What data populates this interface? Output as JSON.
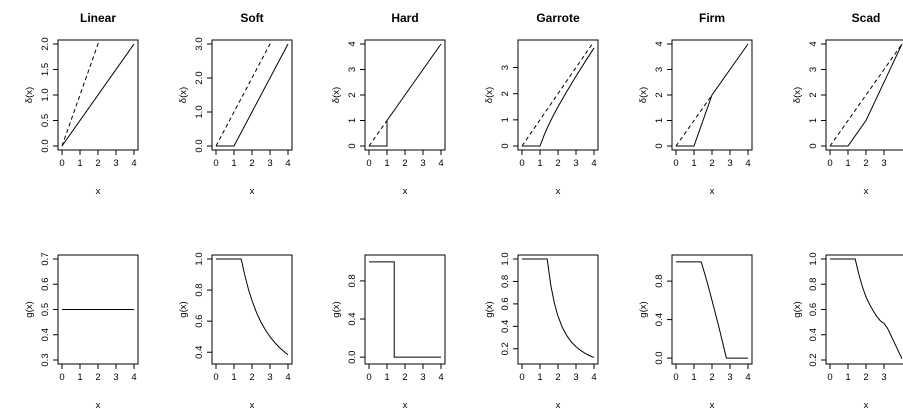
{
  "chart_data": [
    {
      "type": "line",
      "title": "Linear",
      "xlabel": "x",
      "ylabel": "δ(x)",
      "xlim": [
        0,
        4
      ],
      "ylim": [
        0,
        2
      ],
      "xticks": [
        "0",
        "1",
        "2",
        "3",
        "4"
      ],
      "yticks": [
        "0.0",
        "0.5",
        "1.0",
        "1.5",
        "2.0"
      ],
      "series": [
        {
          "style": "solid",
          "x": [
            0,
            4
          ],
          "y": [
            0,
            2
          ]
        },
        {
          "style": "dashed",
          "x": [
            0,
            2.05
          ],
          "y": [
            0,
            2.05
          ]
        }
      ]
    },
    {
      "type": "line",
      "title": "Soft",
      "xlabel": "x",
      "ylabel": "δ(x)",
      "xlim": [
        0,
        4
      ],
      "ylim": [
        0,
        3
      ],
      "xticks": [
        "0",
        "1",
        "2",
        "3",
        "4"
      ],
      "yticks": [
        "0.0",
        "1.0",
        "2.0",
        "3.0"
      ],
      "series": [
        {
          "style": "solid",
          "x": [
            0,
            1,
            4
          ],
          "y": [
            0,
            0,
            3
          ]
        },
        {
          "style": "dashed",
          "x": [
            0,
            3.05
          ],
          "y": [
            0,
            3.05
          ]
        }
      ]
    },
    {
      "type": "line",
      "title": "Hard",
      "xlabel": "x",
      "ylabel": "δ(x)",
      "xlim": [
        0,
        4
      ],
      "ylim": [
        0,
        4
      ],
      "xticks": [
        "0",
        "1",
        "2",
        "3",
        "4"
      ],
      "yticks": [
        "0",
        "1",
        "2",
        "3",
        "4"
      ],
      "series": [
        {
          "style": "solid",
          "x": [
            0,
            1,
            1,
            4
          ],
          "y": [
            0,
            0,
            1,
            4
          ]
        },
        {
          "style": "dashed",
          "x": [
            0,
            1
          ],
          "y": [
            0,
            1
          ]
        }
      ]
    },
    {
      "type": "line",
      "title": "Garrote",
      "xlabel": "x",
      "ylabel": "δ(x)",
      "xlim": [
        0,
        4
      ],
      "ylim": [
        0,
        3.9
      ],
      "xticks": [
        "0",
        "1",
        "2",
        "3",
        "4"
      ],
      "yticks": [
        "0",
        "1",
        "2",
        "3"
      ],
      "series": [
        {
          "style": "solid",
          "x": [
            0,
            1,
            1.25,
            1.5,
            1.75,
            2,
            2.5,
            3,
            3.5,
            4
          ],
          "y": [
            0,
            0,
            0.45,
            0.833,
            1.179,
            1.5,
            2.1,
            2.667,
            3.214,
            3.75
          ]
        },
        {
          "style": "dashed",
          "x": [
            0,
            3.9
          ],
          "y": [
            0,
            3.9
          ]
        }
      ]
    },
    {
      "type": "line",
      "title": "Firm",
      "xlabel": "x",
      "ylabel": "δ(x)",
      "xlim": [
        0,
        4
      ],
      "ylim": [
        0,
        4
      ],
      "xticks": [
        "0",
        "1",
        "2",
        "3",
        "4"
      ],
      "yticks": [
        "0",
        "1",
        "2",
        "3",
        "4"
      ],
      "series": [
        {
          "style": "solid",
          "x": [
            0,
            1,
            2,
            4
          ],
          "y": [
            0,
            0,
            2,
            4
          ]
        },
        {
          "style": "dashed",
          "x": [
            0,
            2
          ],
          "y": [
            0,
            2
          ]
        }
      ]
    },
    {
      "type": "line",
      "title": "Scad",
      "xlabel": "x",
      "ylabel": "δ(x)",
      "xlim": [
        0,
        4
      ],
      "ylim": [
        0,
        4
      ],
      "xticks": [
        "0",
        "1",
        "2",
        "3"
      ],
      "yticks": [
        "0",
        "1",
        "2",
        "3",
        "4"
      ],
      "series": [
        {
          "style": "solid",
          "x": [
            0,
            1,
            2,
            4
          ],
          "y": [
            0,
            0,
            1,
            4
          ]
        },
        {
          "style": "dashed",
          "x": [
            0,
            4
          ],
          "y": [
            0,
            4
          ]
        }
      ]
    },
    {
      "type": "line",
      "title": "",
      "xlabel": "x",
      "ylabel": "g(x)",
      "xlim": [
        0,
        4
      ],
      "ylim": [
        0.3,
        0.7
      ],
      "xticks": [
        "0",
        "1",
        "2",
        "3",
        "4"
      ],
      "yticks": [
        "0.3",
        "0.4",
        "0.5",
        "0.6",
        "0.7"
      ],
      "series": [
        {
          "style": "solid",
          "x": [
            0,
            4
          ],
          "y": [
            0.5,
            0.5
          ]
        }
      ]
    },
    {
      "type": "line",
      "title": "",
      "xlabel": "x",
      "ylabel": "g(x)",
      "xlim": [
        0,
        4
      ],
      "ylim": [
        0.35,
        1.0
      ],
      "xticks": [
        "0",
        "1",
        "2",
        "3",
        "4"
      ],
      "yticks": [
        "0.4",
        "0.6",
        "0.8",
        "1.0"
      ],
      "series": [
        {
          "style": "solid",
          "x": [
            0,
            1.4,
            1.6,
            1.8,
            2,
            2.25,
            2.5,
            2.75,
            3,
            3.25,
            3.5,
            3.75,
            4
          ],
          "y": [
            1,
            1,
            0.895,
            0.806,
            0.733,
            0.655,
            0.593,
            0.542,
            0.5,
            0.464,
            0.433,
            0.407,
            0.383
          ]
        }
      ]
    },
    {
      "type": "line",
      "title": "",
      "xlabel": "x",
      "ylabel": "g(x)",
      "xlim": [
        0,
        4
      ],
      "ylim": [
        -0.03,
        1.03
      ],
      "xticks": [
        "0",
        "1",
        "2",
        "3",
        "4"
      ],
      "yticks": [
        "0.0",
        "0.4",
        "0.8"
      ],
      "series": [
        {
          "style": "solid",
          "x": [
            0,
            1.4,
            1.4,
            4
          ],
          "y": [
            1,
            1,
            0,
            0
          ]
        }
      ]
    },
    {
      "type": "line",
      "title": "",
      "xlabel": "x",
      "ylabel": "g(x)",
      "xlim": [
        0,
        4
      ],
      "ylim": [
        0.1,
        1.0
      ],
      "xticks": [
        "0",
        "1",
        "2",
        "3",
        "4"
      ],
      "yticks": [
        "0.2",
        "0.4",
        "0.6",
        "0.8",
        "1.0"
      ],
      "series": [
        {
          "style": "solid",
          "x": [
            0,
            1.4,
            1.6,
            1.8,
            2,
            2.25,
            2.5,
            2.75,
            3,
            3.25,
            3.5,
            3.75,
            4
          ],
          "y": [
            1,
            1,
            0.766,
            0.605,
            0.49,
            0.387,
            0.314,
            0.259,
            0.218,
            0.186,
            0.16,
            0.139,
            0.123
          ]
        }
      ]
    },
    {
      "type": "line",
      "title": "",
      "xlabel": "x",
      "ylabel": "g(x)",
      "xlim": [
        0,
        4
      ],
      "ylim": [
        -0.02,
        1.03
      ],
      "xticks": [
        "0",
        "1",
        "2",
        "3",
        "4"
      ],
      "yticks": [
        "0.0",
        "0.4",
        "0.8"
      ],
      "series": [
        {
          "style": "solid",
          "x": [
            0,
            1.4,
            1.6,
            1.8,
            2,
            2.2,
            2.4,
            2.6,
            2.8,
            4
          ],
          "y": [
            1,
            1,
            0.875,
            0.741,
            0.6,
            0.455,
            0.309,
            0.154,
            0,
            0
          ]
        }
      ]
    },
    {
      "type": "line",
      "title": "",
      "xlabel": "x",
      "ylabel": "g(x)",
      "xlim": [
        0,
        4
      ],
      "ylim": [
        0.2,
        1.0
      ],
      "xticks": [
        "0",
        "1",
        "2",
        "3"
      ],
      "yticks": [
        "0.2",
        "0.4",
        "0.6",
        "0.8",
        "1.0"
      ],
      "series": [
        {
          "style": "solid",
          "x": [
            0,
            1.4,
            1.6,
            1.8,
            2,
            2.2,
            2.4,
            2.6,
            2.8,
            3.0,
            3.2,
            3.4,
            3.6,
            3.8,
            4
          ],
          "y": [
            1,
            1,
            0.88,
            0.78,
            0.7,
            0.64,
            0.59,
            0.545,
            0.51,
            0.49,
            0.45,
            0.39,
            0.33,
            0.27,
            0.21
          ]
        }
      ]
    }
  ]
}
